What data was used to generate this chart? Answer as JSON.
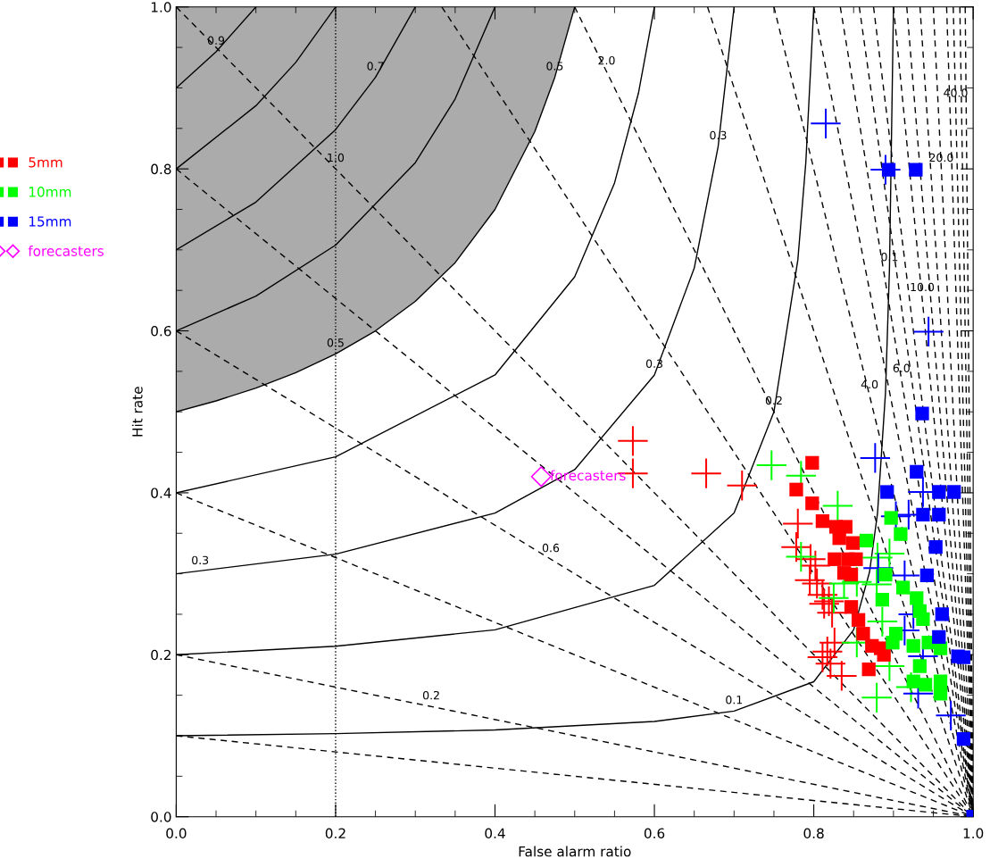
{
  "chart_data": {
    "type": "scatter",
    "xlabel": "False alarm ratio",
    "ylabel": "Hit rate",
    "xlim": [
      0,
      1
    ],
    "ylim": [
      0,
      1
    ],
    "xticks": [
      {
        "value": 0,
        "label": "0.0"
      },
      {
        "value": 0.2,
        "label": "0.2"
      },
      {
        "value": 0.4,
        "label": "0.4"
      },
      {
        "value": 0.6,
        "label": "0.6"
      },
      {
        "value": 0.8,
        "label": "0.8"
      },
      {
        "value": 1,
        "label": "1.0"
      }
    ],
    "yticks": [
      {
        "value": 0,
        "label": "0.0"
      },
      {
        "value": 0.2,
        "label": "0.2"
      },
      {
        "value": 0.4,
        "label": "0.4"
      },
      {
        "value": 0.6,
        "label": "0.6"
      },
      {
        "value": 0.8,
        "label": "0.8"
      },
      {
        "value": 1,
        "label": "1.0"
      }
    ],
    "grid": false,
    "legend": "left",
    "ref_lines": [
      {
        "axis": "x",
        "value": 0.2,
        "label": null,
        "color": "#000000",
        "line_style": "dotted"
      }
    ],
    "series": [
      {
        "type": "line",
        "color": "#000000",
        "line_style": "solid",
        "x": [
          0,
          0.05,
          0.1,
          0.15,
          0.2,
          0.25,
          0.3,
          0.35,
          0.4,
          0.45,
          0.475,
          0.5
        ],
        "values": [
          0.5,
          0.5135,
          0.5294,
          0.5484,
          0.5714,
          0.6,
          0.6364,
          0.6842,
          0.75,
          0.8462,
          0.913,
          1
        ],
        "lower": [
          0.5,
          0.5135,
          0.5294,
          0.5484,
          0.5714,
          0.6,
          0.6364,
          0.6842,
          0.75,
          0.8462,
          0.913,
          1
        ],
        "upper": [
          1,
          1,
          1,
          1,
          1,
          1,
          1,
          1,
          1,
          1,
          1,
          1
        ]
      },
      {
        "type": "line",
        "color": "#000000",
        "line_style": "solid",
        "x": [
          0,
          0.2,
          0.4,
          0.6,
          0.7,
          0.8,
          0.85,
          0.87,
          0.88,
          0.89,
          0.895,
          0.9
        ],
        "values": [
          0.1,
          0.1026,
          0.1071,
          0.1176,
          0.1304,
          0.1667,
          0.2308,
          0.3023,
          0.375,
          0.5238,
          0.6774,
          1
        ]
      },
      {
        "type": "line",
        "color": "#000000",
        "line_style": "solid",
        "x": [
          0,
          0.2,
          0.4,
          0.6,
          0.7,
          0.75,
          0.78,
          0.79,
          0.8
        ],
        "values": [
          0.2,
          0.2105,
          0.2308,
          0.2857,
          0.375,
          0.5,
          0.6875,
          0.8077,
          1
        ]
      },
      {
        "type": "line",
        "color": "#000000",
        "line_style": "solid",
        "x": [
          0,
          0.2,
          0.4,
          0.5,
          0.6,
          0.65,
          0.68,
          0.7
        ],
        "values": [
          0.3,
          0.3243,
          0.375,
          0.4286,
          0.5455,
          0.6774,
          0.8276,
          1
        ]
      },
      {
        "type": "line",
        "color": "#000000",
        "line_style": "solid",
        "x": [
          0,
          0.2,
          0.4,
          0.5,
          0.55,
          0.58,
          0.6
        ],
        "values": [
          0.4,
          0.4444,
          0.5455,
          0.6667,
          0.7826,
          0.8936,
          1
        ]
      },
      {
        "type": "line",
        "color": "#000000",
        "line_style": "solid",
        "x": [
          0,
          0.1,
          0.2,
          0.3,
          0.35,
          0.4
        ],
        "values": [
          0.6,
          0.6429,
          0.7059,
          0.8077,
          0.8864,
          1
        ]
      },
      {
        "type": "line",
        "color": "#000000",
        "line_style": "solid",
        "x": [
          0,
          0.1,
          0.2,
          0.25,
          0.3
        ],
        "values": [
          0.7,
          0.759,
          0.8485,
          0.913,
          1
        ]
      },
      {
        "type": "line",
        "color": "#000000",
        "line_style": "solid",
        "x": [
          0,
          0.1,
          0.15,
          0.2
        ],
        "values": [
          0.8,
          0.878,
          0.9315,
          1
        ]
      },
      {
        "type": "line",
        "color": "#000000",
        "line_style": "solid",
        "x": [
          0,
          0.05,
          0.1
        ],
        "values": [
          0.9,
          0.9447,
          1
        ]
      },
      {
        "type": "line",
        "color": "#000000",
        "line_style": "dashed",
        "x": [
          0,
          1
        ],
        "values": [
          0.1,
          0
        ]
      },
      {
        "type": "line",
        "color": "#000000",
        "line_style": "dashed",
        "x": [
          0,
          1
        ],
        "values": [
          0.2,
          0
        ]
      },
      {
        "type": "line",
        "color": "#000000",
        "line_style": "dashed",
        "x": [
          0,
          1
        ],
        "values": [
          0.4,
          0
        ]
      },
      {
        "type": "line",
        "color": "#000000",
        "line_style": "dashed",
        "x": [
          0,
          1
        ],
        "values": [
          0.6,
          0
        ]
      },
      {
        "type": "line",
        "color": "#000000",
        "line_style": "dashed",
        "x": [
          0,
          1
        ],
        "values": [
          0.8,
          0
        ]
      },
      {
        "type": "line",
        "color": "#000000",
        "line_style": "dashed",
        "x": [
          0,
          1
        ],
        "values": [
          1,
          0
        ]
      },
      {
        "type": "line",
        "color": "#000000",
        "line_style": "dashed",
        "x": [
          0.3333,
          1
        ],
        "values": [
          1,
          0
        ]
      },
      {
        "type": "line",
        "color": "#000000",
        "line_style": "dashed",
        "x": [
          0.5,
          1
        ],
        "values": [
          1,
          0
        ]
      },
      {
        "type": "line",
        "color": "#000000",
        "line_style": "dashed",
        "x": [
          0.6667,
          1
        ],
        "values": [
          1,
          0
        ]
      },
      {
        "type": "line",
        "color": "#000000",
        "line_style": "dashed",
        "x": [
          0.75,
          1
        ],
        "values": [
          1,
          0
        ]
      },
      {
        "type": "line",
        "color": "#000000",
        "line_style": "dashed",
        "x": [
          0.8,
          1
        ],
        "values": [
          1,
          0
        ]
      },
      {
        "type": "line",
        "color": "#000000",
        "line_style": "dashed",
        "x": [
          0.8333,
          1
        ],
        "values": [
          1,
          0
        ]
      },
      {
        "type": "line",
        "color": "#000000",
        "line_style": "dashed",
        "x": [
          0.8571,
          1
        ],
        "values": [
          1,
          0
        ]
      },
      {
        "type": "line",
        "color": "#000000",
        "line_style": "dashed",
        "x": [
          0.875,
          1
        ],
        "values": [
          1,
          0
        ]
      },
      {
        "type": "line",
        "color": "#000000",
        "line_style": "dashed",
        "x": [
          0.9,
          1
        ],
        "values": [
          1,
          0
        ]
      },
      {
        "type": "line",
        "color": "#000000",
        "line_style": "dashed",
        "x": [
          0.9167,
          1
        ],
        "values": [
          1,
          0
        ]
      },
      {
        "type": "line",
        "color": "#000000",
        "line_style": "dashed",
        "x": [
          0.9333,
          1
        ],
        "values": [
          1,
          0
        ]
      },
      {
        "type": "line",
        "color": "#000000",
        "line_style": "dashed",
        "x": [
          0.95,
          1
        ],
        "values": [
          1,
          0
        ]
      },
      {
        "type": "line",
        "color": "#000000",
        "line_style": "dashed",
        "x": [
          0.9667,
          1
        ],
        "values": [
          1,
          0
        ]
      },
      {
        "type": "line",
        "color": "#000000",
        "line_style": "dashed",
        "x": [
          0.975,
          1
        ],
        "values": [
          1,
          0
        ]
      },
      {
        "type": "line",
        "color": "#000000",
        "line_style": "dashed",
        "x": [
          0.9833,
          1
        ],
        "values": [
          1,
          0
        ]
      },
      {
        "type": "line",
        "color": "#000000",
        "line_style": "dashed",
        "x": [
          0.99,
          1
        ],
        "values": [
          1,
          0
        ]
      },
      {
        "marker": "cross",
        "color": "#ff0000",
        "x": [
          0.573,
          0.573,
          0.665,
          0.71,
          0.78,
          0.778,
          0.796,
          0.802,
          0.795,
          0.804,
          0.811,
          0.819,
          0.813,
          0.823,
          0.826,
          0.817,
          0.811,
          0.821,
          0.835
        ],
        "values": [
          0.464,
          0.424,
          0.424,
          0.409,
          0.362,
          0.333,
          0.318,
          0.31,
          0.292,
          0.288,
          0.274,
          0.266,
          0.263,
          0.252,
          0.215,
          0.204,
          0.197,
          0.189,
          0.174
        ]
      },
      {
        "marker": "cross",
        "color": "#00ff00",
        "x": [
          0.747,
          0.784,
          0.83,
          0.784,
          0.88,
          0.895,
          0.838,
          0.854,
          0.825,
          0.879,
          0.886,
          0.854,
          0.895,
          0.879,
          0.922
        ],
        "values": [
          0.434,
          0.421,
          0.384,
          0.321,
          0.32,
          0.325,
          0.288,
          0.29,
          0.27,
          0.287,
          0.241,
          0.215,
          0.186,
          0.147,
          0.16
        ]
      },
      {
        "marker": "cross",
        "color": "#0000ff",
        "x": [
          0.815,
          0.89,
          0.944,
          0.877,
          0.937,
          0.903,
          0.919,
          0.881,
          0.914,
          0.925,
          0.914,
          0.937,
          0.931,
          0.972
        ],
        "values": [
          0.856,
          0.799,
          0.599,
          0.443,
          0.401,
          0.371,
          0.373,
          0.307,
          0.298,
          0.25,
          0.23,
          0.198,
          0.152,
          0.125
        ]
      },
      {
        "marker": "square",
        "name": "5mm",
        "color": "#ff0000",
        "x": [
          0.798,
          0.778,
          0.798,
          0.811,
          0.828,
          0.84,
          0.832,
          0.849,
          0.826,
          0.843,
          0.853,
          0.838,
          0.847,
          0.847,
          0.856,
          0.862,
          0.873,
          0.884,
          0.888,
          0.869
        ],
        "values": [
          0.437,
          0.404,
          0.387,
          0.365,
          0.358,
          0.358,
          0.344,
          0.338,
          0.318,
          0.318,
          0.318,
          0.301,
          0.299,
          0.259,
          0.243,
          0.226,
          0.211,
          0.208,
          0.2,
          0.182
        ]
      },
      {
        "marker": "square",
        "name": "10mm",
        "color": "#00ff00",
        "x": [
          0.866,
          0.897,
          0.909,
          0.89,
          0.886,
          0.912,
          0.929,
          0.933,
          0.937,
          0.903,
          0.899,
          0.925,
          0.944,
          0.959,
          0.933,
          0.925,
          0.94,
          0.959,
          0.959
        ],
        "values": [
          0.341,
          0.369,
          0.349,
          0.299,
          0.268,
          0.283,
          0.27,
          0.254,
          0.244,
          0.226,
          0.215,
          0.211,
          0.215,
          0.208,
          0.186,
          0.167,
          0.163,
          0.167,
          0.152
        ]
      },
      {
        "marker": "square",
        "name": "15mm",
        "color": "#0000ff",
        "x": [
          0.894,
          0.928,
          0.936,
          0.929,
          0.892,
          0.957,
          0.976,
          0.937,
          0.957,
          0.953,
          0.942,
          0.961,
          0.957,
          0.981,
          0.988,
          0.988,
          1.0
        ],
        "values": [
          0.799,
          0.799,
          0.498,
          0.426,
          0.401,
          0.401,
          0.401,
          0.373,
          0.373,
          0.333,
          0.298,
          0.25,
          0.222,
          0.198,
          0.197,
          0.096,
          0.0
        ]
      },
      {
        "marker": "diamond",
        "name": "forecasters",
        "color": "#ff00ff",
        "x": [
          0.458
        ],
        "values": [
          0.42
        ],
        "value_labels": [
          "forecasters"
        ]
      }
    ],
    "annotations": [
      {
        "text": "0.9",
        "x": 0.05,
        "y": 0.9447
      },
      {
        "text": "0.7",
        "x": 0.25,
        "y": 0.913
      },
      {
        "text": "0.5",
        "x": 0.475,
        "y": 0.913
      },
      {
        "text": "0.3",
        "x": 0.68,
        "y": 0.8276
      },
      {
        "text": "0.1",
        "x": 0.895,
        "y": 0.6774
      },
      {
        "text": "2.0",
        "x": 0.54,
        "y": 0.92
      },
      {
        "text": "1.0",
        "x": 0.2,
        "y": 0.8
      },
      {
        "text": "0.5",
        "x": 0.2,
        "y": 0.5714
      },
      {
        "text": "0.3",
        "x": 0.6,
        "y": 0.5455
      },
      {
        "text": "0.2",
        "x": 0.75,
        "y": 0.5
      },
      {
        "text": "0.3",
        "x": 0.03,
        "y": 0.3028
      },
      {
        "text": "0.1",
        "x": 0.7,
        "y": 0.1304
      },
      {
        "text": "0.2",
        "x": 0.32,
        "y": 0.136
      },
      {
        "text": "0.6",
        "x": 0.47,
        "y": 0.318
      },
      {
        "text": "4.0",
        "x": 0.87,
        "y": 0.52
      },
      {
        "text": "6.0",
        "x": 0.91,
        "y": 0.54
      },
      {
        "text": "10.0",
        "x": 0.936,
        "y": 0.64
      },
      {
        "text": "20.0",
        "x": 0.96,
        "y": 0.8
      },
      {
        "text": "40.0",
        "x": 0.978,
        "y": 0.88
      }
    ]
  }
}
